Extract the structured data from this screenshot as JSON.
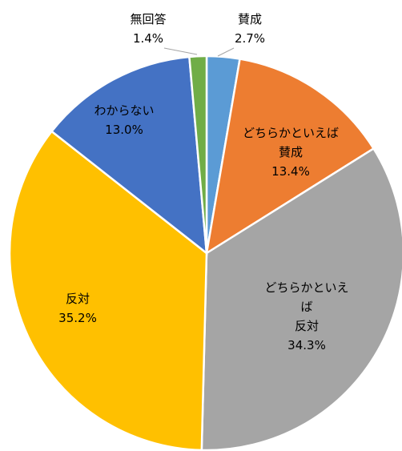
{
  "chart_data": {
    "type": "pie",
    "categories": [
      "賛成",
      "どちらかといえば\n賛成",
      "どちらかといえば\n反対",
      "反対",
      "わからない",
      "無回答"
    ],
    "values": [
      2.7,
      13.4,
      34.3,
      35.2,
      13.0,
      1.4
    ],
    "value_labels": [
      "2.7%",
      "13.4%",
      "34.3%",
      "35.2%",
      "13.0%",
      "1.4%"
    ],
    "colors": [
      "#5b9bd5",
      "#ed7d31",
      "#a5a5a5",
      "#ffc000",
      "#4472c4",
      "#70ad47"
    ]
  }
}
